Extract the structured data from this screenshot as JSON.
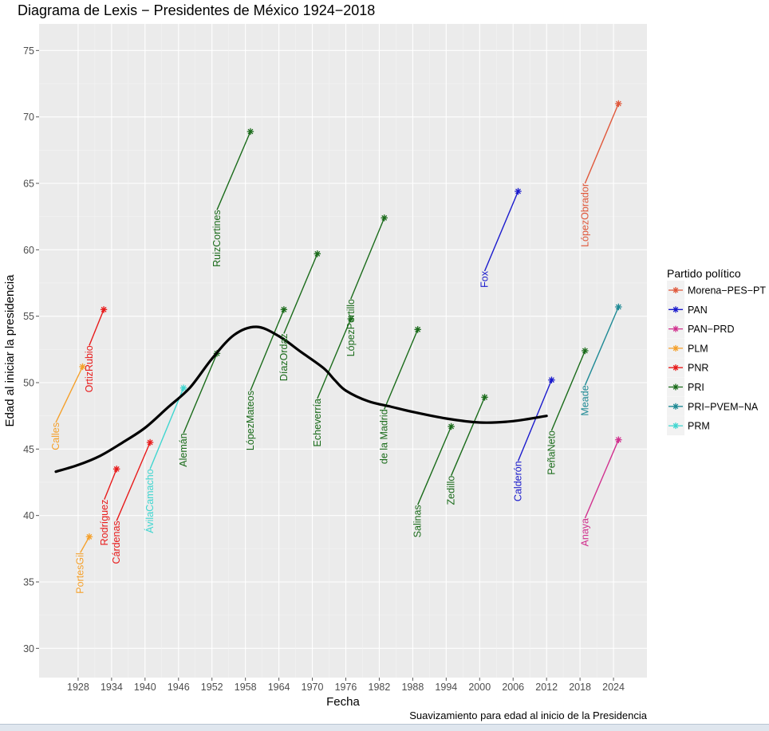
{
  "chart_data": {
    "type": "lexis",
    "title": "Diagrama de Lexis − Presidentes de México 1924−2018",
    "xlabel": "Fecha",
    "ylabel": "Edad al iniciar la presidencia",
    "caption": "Suavizamiento para edad al inicio de la Presidencia",
    "xlim": [
      1921,
      2030
    ],
    "ylim": [
      27.8,
      77
    ],
    "x_ticks": [
      1928,
      1934,
      1940,
      1946,
      1952,
      1958,
      1964,
      1970,
      1976,
      1982,
      1988,
      1994,
      2000,
      2006,
      2012,
      2018,
      2024
    ],
    "y_ticks": [
      30,
      35,
      40,
      45,
      50,
      55,
      60,
      65,
      70,
      75
    ],
    "legend": {
      "title": "Partido político",
      "entries": [
        {
          "name": "Morena−PES−PT",
          "color": "#e0573a"
        },
        {
          "name": "PAN",
          "color": "#1a1acd"
        },
        {
          "name": "PAN−PRD",
          "color": "#d1308e"
        },
        {
          "name": "PLM",
          "color": "#f5a02a"
        },
        {
          "name": "PNR",
          "color": "#e81a1a"
        },
        {
          "name": "PRI",
          "color": "#1a6b1a"
        },
        {
          "name": "PRI−PVEM−NA",
          "color": "#1f8a95"
        },
        {
          "name": "PRM",
          "color": "#3fd6d0"
        }
      ]
    },
    "series": [
      {
        "name": "Calles",
        "party": "PLM",
        "x_start": 1924,
        "age_start": 47,
        "x_end": 1928.8,
        "age_end": 51.2
      },
      {
        "name": "PortesGil",
        "party": "PLM",
        "x_start": 1928.4,
        "age_start": 37.2,
        "x_end": 1930,
        "age_end": 38.4
      },
      {
        "name": "OrtizRubio",
        "party": "PNR",
        "x_start": 1930,
        "age_start": 52.8,
        "x_end": 1932.6,
        "age_end": 55.5
      },
      {
        "name": "Rodríguez",
        "party": "PNR",
        "x_start": 1932.7,
        "age_start": 41.2,
        "x_end": 1934.9,
        "age_end": 43.5
      },
      {
        "name": "Cárdenas",
        "party": "PNR",
        "x_start": 1934.9,
        "age_start": 39.6,
        "x_end": 1940.9,
        "age_end": 45.5
      },
      {
        "name": "ÁvilaCamacho",
        "party": "PRM",
        "x_start": 1940.9,
        "age_start": 43.5,
        "x_end": 1946.9,
        "age_end": 49.6
      },
      {
        "name": "Alemán",
        "party": "PRI",
        "x_start": 1946.9,
        "age_start": 46.2,
        "x_end": 1952.9,
        "age_end": 52.2
      },
      {
        "name": "RuizCortines",
        "party": "PRI",
        "x_start": 1952.9,
        "age_start": 63,
        "x_end": 1958.9,
        "age_end": 68.9
      },
      {
        "name": "LópezMateos",
        "party": "PRI",
        "x_start": 1958.9,
        "age_start": 49.4,
        "x_end": 1964.9,
        "age_end": 55.5
      },
      {
        "name": "DíazOrdaz",
        "party": "PRI",
        "x_start": 1964.9,
        "age_start": 53.7,
        "x_end": 1970.9,
        "age_end": 59.7
      },
      {
        "name": "Echeverría",
        "party": "PRI",
        "x_start": 1970.9,
        "age_start": 48.8,
        "x_end": 1976.9,
        "age_end": 54.8
      },
      {
        "name": "LópezPortillo",
        "party": "PRI",
        "x_start": 1976.9,
        "age_start": 56.3,
        "x_end": 1982.9,
        "age_end": 62.4
      },
      {
        "name": "de la Madrid",
        "party": "PRI",
        "x_start": 1982.9,
        "age_start": 48,
        "x_end": 1988.9,
        "age_end": 54
      },
      {
        "name": "Salinas",
        "party": "PRI",
        "x_start": 1988.9,
        "age_start": 40.8,
        "x_end": 1994.9,
        "age_end": 46.7
      },
      {
        "name": "Zedillo",
        "party": "PRI",
        "x_start": 1994.9,
        "age_start": 43,
        "x_end": 2000.9,
        "age_end": 48.9
      },
      {
        "name": "Fox",
        "party": "PAN",
        "x_start": 2000.9,
        "age_start": 58.4,
        "x_end": 2006.9,
        "age_end": 64.4
      },
      {
        "name": "Calderón",
        "party": "PAN",
        "x_start": 2006.9,
        "age_start": 44.1,
        "x_end": 2012.9,
        "age_end": 50.2
      },
      {
        "name": "PeñaNeto",
        "party": "PRI",
        "x_start": 2012.9,
        "age_start": 46.4,
        "x_end": 2018.9,
        "age_end": 52.4
      },
      {
        "name": "LópezObrador",
        "party": "Morena−PES−PT",
        "x_start": 2018.9,
        "age_start": 65,
        "x_end": 2024.9,
        "age_end": 71
      },
      {
        "name": "Anaya",
        "party": "PAN−PRD",
        "x_start": 2018.9,
        "age_start": 39.8,
        "x_end": 2024.9,
        "age_end": 45.7
      },
      {
        "name": "Meade",
        "party": "PRI−PVEM−NA",
        "x_start": 2018.9,
        "age_start": 49.8,
        "x_end": 2024.9,
        "age_end": 55.7
      }
    ],
    "smooth_curve": {
      "x": [
        1924,
        1928,
        1932,
        1936,
        1940,
        1944,
        1948,
        1952,
        1956,
        1960,
        1964,
        1968,
        1972,
        1974,
        1976,
        1980,
        1984,
        1988,
        1994,
        2000,
        2006,
        2012
      ],
      "y": [
        43.3,
        43.8,
        44.5,
        45.5,
        46.6,
        48.1,
        49.6,
        51.8,
        53.6,
        54.2,
        53.5,
        52.3,
        51.1,
        50.2,
        49.4,
        48.6,
        48.2,
        47.8,
        47.3,
        47,
        47.1,
        47.5
      ]
    }
  }
}
